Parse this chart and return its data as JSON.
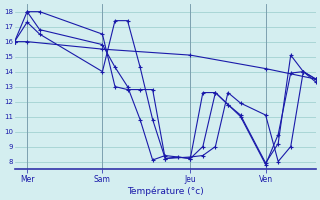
{
  "xlabel": "Température (°c)",
  "bg_color": "#d4eef0",
  "line_color": "#1a1aaa",
  "grid_color": "#99cccc",
  "ylim": [
    7.5,
    18.5
  ],
  "yticks": [
    8,
    9,
    10,
    11,
    12,
    13,
    14,
    15,
    16,
    17,
    18
  ],
  "xlim": [
    0,
    24
  ],
  "xtick_positions": [
    1,
    7,
    14,
    20
  ],
  "xtick_labels": [
    "Mer",
    "Sam",
    "Jeu",
    "Ven"
  ],
  "vlines": [
    1,
    7,
    14,
    20
  ],
  "lines": [
    {
      "x": [
        0,
        1,
        7,
        14,
        20,
        24
      ],
      "y": [
        16.0,
        16.0,
        15.5,
        15.1,
        14.2,
        13.5
      ]
    },
    {
      "x": [
        1,
        2,
        7,
        8,
        9,
        10,
        11,
        12,
        14,
        15,
        16,
        17,
        18,
        20,
        21,
        22,
        23,
        24
      ],
      "y": [
        18,
        18,
        16.5,
        13.0,
        12.8,
        12.8,
        12.8,
        8.2,
        8.3,
        8.4,
        9.0,
        12.6,
        11.9,
        11.1,
        8.0,
        9.0,
        14.0,
        13.5
      ]
    },
    {
      "x": [
        0,
        1,
        2,
        7,
        8,
        9,
        10,
        11,
        12,
        13,
        14,
        15,
        16,
        17,
        18,
        20,
        21,
        22,
        23,
        24
      ],
      "y": [
        16,
        17.3,
        16.5,
        14.0,
        17.4,
        17.4,
        14.3,
        10.8,
        8.2,
        8.3,
        8.2,
        12.6,
        12.6,
        11.8,
        11.1,
        7.9,
        9.2,
        15.1,
        14.0,
        13.5
      ]
    },
    {
      "x": [
        0,
        1,
        2,
        7,
        8,
        9,
        10,
        11,
        12,
        14,
        15,
        16,
        17,
        18,
        20,
        21,
        22,
        23,
        24
      ],
      "y": [
        16.0,
        18.0,
        16.8,
        15.8,
        14.3,
        13.0,
        10.8,
        8.1,
        8.4,
        8.2,
        9.0,
        12.6,
        11.8,
        11.0,
        7.8,
        9.8,
        13.9,
        14.0,
        13.3
      ]
    }
  ]
}
